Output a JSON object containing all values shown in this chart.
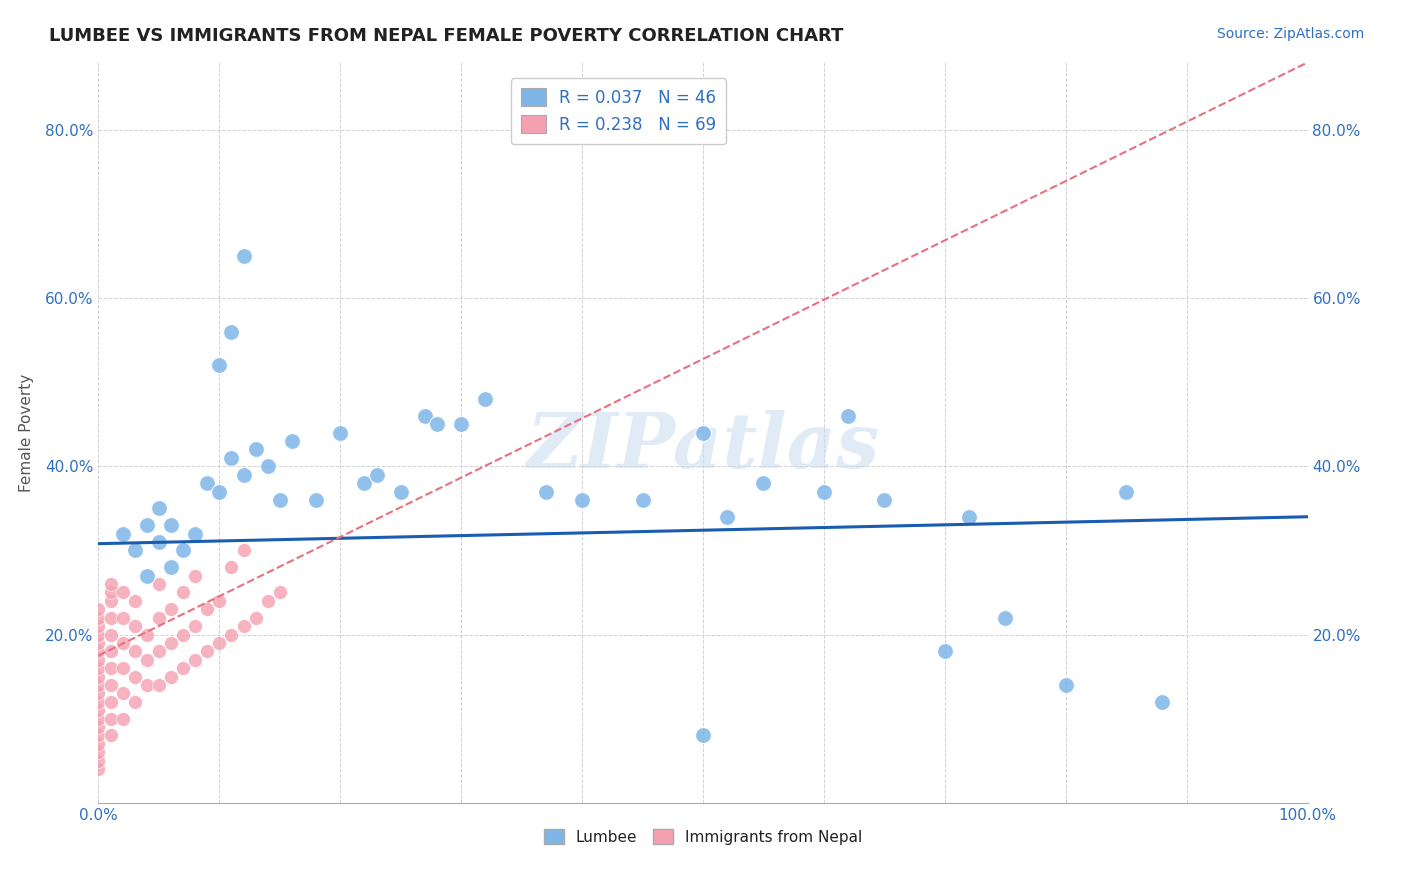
{
  "title": "LUMBEE VS IMMIGRANTS FROM NEPAL FEMALE POVERTY CORRELATION CHART",
  "source_text": "Source: ZipAtlas.com",
  "ylabel": "Female Poverty",
  "xlim": [
    0,
    1.0
  ],
  "ylim": [
    0,
    0.88
  ],
  "xticks": [
    0.0,
    0.1,
    0.2,
    0.3,
    0.4,
    0.5,
    0.6,
    0.7,
    0.8,
    0.9,
    1.0
  ],
  "xticklabels": [
    "0.0%",
    "",
    "",
    "",
    "",
    "",
    "",
    "",
    "",
    "",
    "100.0%"
  ],
  "yticks": [
    0.0,
    0.2,
    0.4,
    0.6,
    0.8
  ],
  "yticklabels": [
    "",
    "20.0%",
    "40.0%",
    "60.0%",
    "80.0%"
  ],
  "legend_R1": "R = 0.037",
  "legend_N1": "N = 46",
  "legend_R2": "R = 0.238",
  "legend_N2": "N = 69",
  "watermark": "ZIPatlas",
  "lumbee_color": "#7EB6E8",
  "nepal_color": "#F4A0B0",
  "trend_lumbee_color": "#1A5CB0",
  "trend_nepal_color": "#E87080",
  "lumbee_x": [
    0.02,
    0.03,
    0.04,
    0.04,
    0.05,
    0.05,
    0.06,
    0.06,
    0.07,
    0.08,
    0.09,
    0.1,
    0.11,
    0.12,
    0.13,
    0.14,
    0.15,
    0.16,
    0.18,
    0.2,
    0.22,
    0.23,
    0.25,
    0.27,
    0.28,
    0.3,
    0.32,
    0.37,
    0.4,
    0.45,
    0.5,
    0.52,
    0.55,
    0.6,
    0.62,
    0.65,
    0.7,
    0.72,
    0.75,
    0.8,
    0.85,
    0.88,
    0.5,
    0.1,
    0.11,
    0.12
  ],
  "lumbee_y": [
    0.32,
    0.3,
    0.33,
    0.27,
    0.35,
    0.31,
    0.28,
    0.33,
    0.3,
    0.32,
    0.38,
    0.37,
    0.41,
    0.39,
    0.42,
    0.4,
    0.36,
    0.43,
    0.36,
    0.44,
    0.38,
    0.39,
    0.37,
    0.46,
    0.45,
    0.45,
    0.48,
    0.37,
    0.36,
    0.36,
    0.44,
    0.34,
    0.38,
    0.37,
    0.46,
    0.36,
    0.18,
    0.34,
    0.22,
    0.14,
    0.37,
    0.12,
    0.08,
    0.52,
    0.56,
    0.65
  ],
  "nepal_x": [
    0.0,
    0.0,
    0.0,
    0.0,
    0.0,
    0.0,
    0.0,
    0.0,
    0.0,
    0.0,
    0.0,
    0.0,
    0.0,
    0.0,
    0.0,
    0.0,
    0.0,
    0.0,
    0.0,
    0.0,
    0.01,
    0.01,
    0.01,
    0.01,
    0.01,
    0.01,
    0.01,
    0.01,
    0.01,
    0.01,
    0.01,
    0.02,
    0.02,
    0.02,
    0.02,
    0.02,
    0.02,
    0.03,
    0.03,
    0.03,
    0.03,
    0.03,
    0.04,
    0.04,
    0.04,
    0.05,
    0.05,
    0.05,
    0.05,
    0.06,
    0.06,
    0.06,
    0.07,
    0.07,
    0.07,
    0.08,
    0.08,
    0.08,
    0.09,
    0.09,
    0.1,
    0.1,
    0.11,
    0.11,
    0.12,
    0.12,
    0.13,
    0.14,
    0.15
  ],
  "nepal_y": [
    0.04,
    0.05,
    0.06,
    0.07,
    0.08,
    0.09,
    0.1,
    0.11,
    0.12,
    0.13,
    0.14,
    0.15,
    0.16,
    0.17,
    0.18,
    0.19,
    0.2,
    0.21,
    0.22,
    0.23,
    0.08,
    0.1,
    0.12,
    0.14,
    0.16,
    0.18,
    0.2,
    0.22,
    0.24,
    0.25,
    0.26,
    0.1,
    0.13,
    0.16,
    0.19,
    0.22,
    0.25,
    0.12,
    0.15,
    0.18,
    0.21,
    0.24,
    0.14,
    0.17,
    0.2,
    0.14,
    0.18,
    0.22,
    0.26,
    0.15,
    0.19,
    0.23,
    0.16,
    0.2,
    0.25,
    0.17,
    0.21,
    0.27,
    0.18,
    0.23,
    0.19,
    0.24,
    0.2,
    0.28,
    0.21,
    0.3,
    0.22,
    0.24,
    0.25
  ],
  "trend_lumbee_x0": 0.0,
  "trend_lumbee_x1": 1.0,
  "trend_lumbee_y0": 0.308,
  "trend_lumbee_y1": 0.34,
  "trend_nepal_x0": 0.0,
  "trend_nepal_x1": 1.0,
  "trend_nepal_y0": 0.175,
  "trend_nepal_y1": 0.88
}
